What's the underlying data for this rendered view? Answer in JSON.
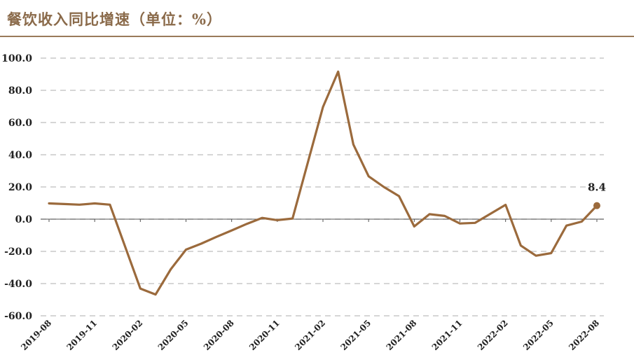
{
  "header": {
    "title": "餐饮收入同比增速（单位：%）"
  },
  "colors": {
    "line": "#9b6a3c",
    "title": "#8a6a4a",
    "grid": "#c8c8c8",
    "axis": "#555555"
  },
  "chart_data": {
    "type": "line",
    "title": "餐饮收入同比增速（单位：%）",
    "xlabel": "",
    "ylabel": "",
    "ylim": [
      -60,
      100
    ],
    "yticks": [
      100,
      80,
      60,
      40,
      20,
      0,
      -20,
      -40,
      -60
    ],
    "ytick_labels": [
      "100.0",
      "80.0",
      "60.0",
      "40.0",
      "20.0",
      "0.0",
      "-20.0",
      "-40.0",
      "-60.0"
    ],
    "grid": "horizontal-dashed",
    "x": [
      "2019-08",
      "2019-09",
      "2019-10",
      "2019-11",
      "2019-12",
      "2020-01",
      "2020-02",
      "2020-03",
      "2020-04",
      "2020-05",
      "2020-06",
      "2020-07",
      "2020-08",
      "2020-09",
      "2020-10",
      "2020-11",
      "2020-12",
      "2021-01",
      "2021-02",
      "2021-03",
      "2021-04",
      "2021-05",
      "2021-06",
      "2021-07",
      "2021-08",
      "2021-09",
      "2021-10",
      "2021-11",
      "2021-12",
      "2022-01",
      "2022-02",
      "2022-03",
      "2022-04",
      "2022-05",
      "2022-06",
      "2022-07",
      "2022-08"
    ],
    "xtick_labels": [
      "2019-08",
      "2019-11",
      "2020-02",
      "2020-05",
      "2020-08",
      "2020-11",
      "2021-02",
      "2021-05",
      "2021-08",
      "2021-11",
      "2022-02",
      "2022-05",
      "2022-08"
    ],
    "series": [
      {
        "values": [
          9.8,
          9.4,
          9.0,
          9.8,
          9.0,
          null,
          -43.1,
          -46.8,
          -31.1,
          -18.9,
          -15.2,
          -11.0,
          -7.0,
          -2.9,
          0.8,
          -0.6,
          0.4,
          null,
          69.6,
          91.6,
          46.4,
          26.6,
          20.0,
          14.3,
          -4.5,
          3.1,
          2.0,
          -2.7,
          -2.3,
          null,
          8.9,
          -16.4,
          -22.7,
          -21.1,
          -4.0,
          -1.5,
          8.4
        ],
        "connect_gaps": true
      }
    ],
    "annotations": [
      {
        "x": "2022-08",
        "y": 8.4,
        "label": "8.4"
      }
    ]
  }
}
